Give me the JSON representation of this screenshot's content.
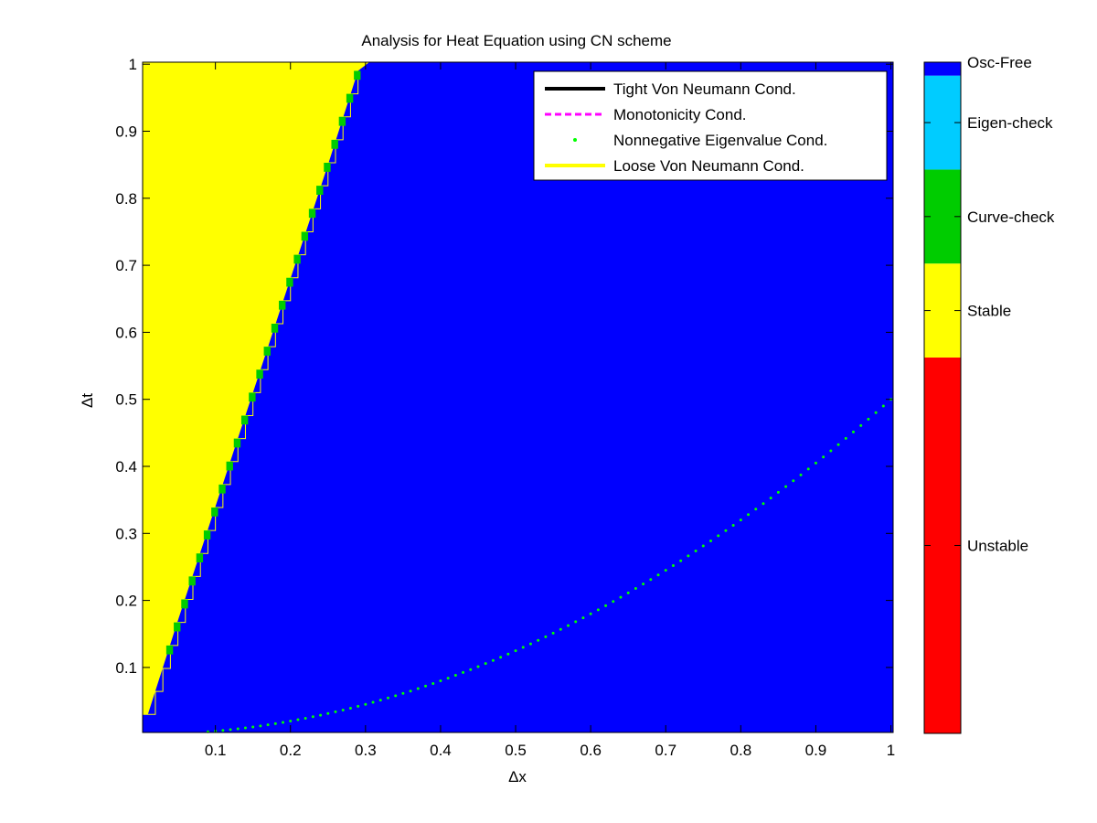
{
  "chart_data": {
    "type": "heatmap",
    "title": "Analysis for Heat Equation using CN scheme",
    "xlabel": "Δx",
    "ylabel": "Δt",
    "xlim": [
      0.003,
      1.003
    ],
    "ylim": [
      0.003,
      1.003
    ],
    "xticks": [
      "0.1",
      "0.2",
      "0.3",
      "0.4",
      "0.5",
      "0.6",
      "0.7",
      "0.8",
      "0.9",
      "1"
    ],
    "yticks": [
      "0.1",
      "0.2",
      "0.3",
      "0.4",
      "0.5",
      "0.6",
      "0.7",
      "0.8",
      "0.9",
      "1"
    ],
    "grid": false,
    "regions": [
      {
        "name": "Stable",
        "color": "#ffff00",
        "boundary": "dt > 3.4*dx"
      },
      {
        "name": "Curve-check",
        "color": "#00cc00",
        "boundary": "thin band along dt = 3.4*dx"
      },
      {
        "name": "Osc-Free",
        "color": "#0000ff",
        "boundary": "remaining domain"
      }
    ],
    "boundary_points": {
      "x": [
        0.01,
        0.05,
        0.1,
        0.15,
        0.2,
        0.25,
        0.29
      ],
      "y": [
        0.03,
        0.17,
        0.34,
        0.51,
        0.68,
        0.85,
        0.99
      ]
    },
    "series": [
      {
        "name": "Tight Von Neumann Cond.",
        "color": "#000000",
        "style": "solid",
        "x": [],
        "y": []
      },
      {
        "name": "Monotonicity Cond.",
        "color": "#ff00ff",
        "style": "dashed",
        "x": [],
        "y": []
      },
      {
        "name": "Nonnegative Eigenvalue Cond.",
        "color": "#00ff00",
        "style": "dotted",
        "x": [
          0.1,
          0.2,
          0.3,
          0.4,
          0.5,
          0.6,
          0.7,
          0.8,
          0.9,
          1.0
        ],
        "y": [
          0.005,
          0.02,
          0.045,
          0.08,
          0.125,
          0.18,
          0.245,
          0.32,
          0.405,
          0.5
        ]
      },
      {
        "name": "Loose Von Neumann Cond.",
        "color": "#ffff00",
        "style": "solid",
        "x": [],
        "y": []
      }
    ],
    "legend": {
      "placement": "top-right"
    },
    "colorbar": {
      "placement": "right",
      "categories": [
        {
          "label": "Unstable",
          "color": "#ff0000",
          "fraction": 0.56
        },
        {
          "label": "Stable",
          "color": "#ffff00",
          "fraction": 0.14
        },
        {
          "label": "Curve-check",
          "color": "#00cc00",
          "fraction": 0.14
        },
        {
          "label": "Eigen-check",
          "color": "#00ccff",
          "fraction": 0.14
        },
        {
          "label": "Osc-Free",
          "color": "#0000ff",
          "fraction": 0.02
        }
      ]
    }
  }
}
